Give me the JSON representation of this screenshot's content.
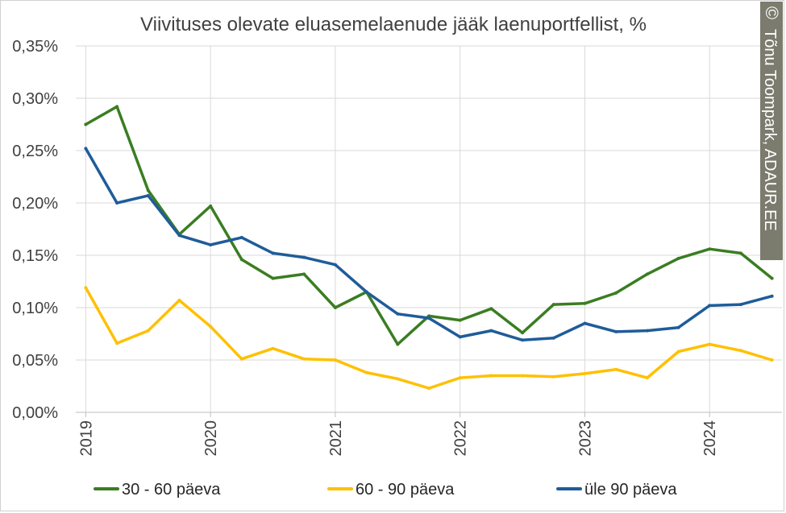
{
  "chart_data": {
    "type": "line",
    "title": "Viivituses olevate eluasemelaenude jääk laenuportfellist, %",
    "xlabel": "",
    "ylabel": "",
    "y_ticks": [
      "0,00%",
      "0,05%",
      "0,10%",
      "0,15%",
      "0,20%",
      "0,25%",
      "0,30%",
      "0,35%"
    ],
    "ylim": [
      0,
      0.35
    ],
    "x_ticks": [
      "2019",
      "2020",
      "2021",
      "2022",
      "2023",
      "2024"
    ],
    "x": [
      2019.0,
      2019.25,
      2019.5,
      2019.75,
      2020.0,
      2020.25,
      2020.5,
      2020.75,
      2021.0,
      2021.25,
      2021.5,
      2021.75,
      2022.0,
      2022.25,
      2022.5,
      2022.75,
      2023.0,
      2023.25,
      2023.5,
      2023.75,
      2024.0,
      2024.25,
      2024.5
    ],
    "xlim": [
      2018.92,
      2024.58
    ],
    "grid": true,
    "legend_position": "bottom",
    "series": [
      {
        "name": "30 - 60 päeva",
        "color": "#3a7d22",
        "values": [
          0.275,
          0.292,
          0.212,
          0.17,
          0.197,
          0.146,
          0.128,
          0.132,
          0.1,
          0.115,
          0.065,
          0.092,
          0.088,
          0.099,
          0.076,
          0.103,
          0.104,
          0.114,
          0.132,
          0.147,
          0.156,
          0.152,
          0.128
        ]
      },
      {
        "name": "60 - 90 päeva",
        "color": "#ffc000",
        "values": [
          0.119,
          0.066,
          0.078,
          0.107,
          0.082,
          0.051,
          0.061,
          0.051,
          0.05,
          0.038,
          0.032,
          0.023,
          0.033,
          0.035,
          0.035,
          0.034,
          0.037,
          0.041,
          0.033,
          0.058,
          0.065,
          0.059,
          0.05
        ]
      },
      {
        "name": "üle 90 päeva",
        "color": "#1f5c99",
        "values": [
          0.252,
          0.2,
          0.207,
          0.169,
          0.16,
          0.167,
          0.152,
          0.148,
          0.141,
          0.115,
          0.094,
          0.09,
          0.072,
          0.078,
          0.069,
          0.071,
          0.085,
          0.077,
          0.078,
          0.081,
          0.102,
          0.103,
          0.111
        ]
      }
    ]
  },
  "credit": {
    "text": "Tõnu Toompark, ADAUR.EE",
    "symbol": "©",
    "background_color": "#7b7b6e",
    "symbol_color": "#e2541c"
  }
}
